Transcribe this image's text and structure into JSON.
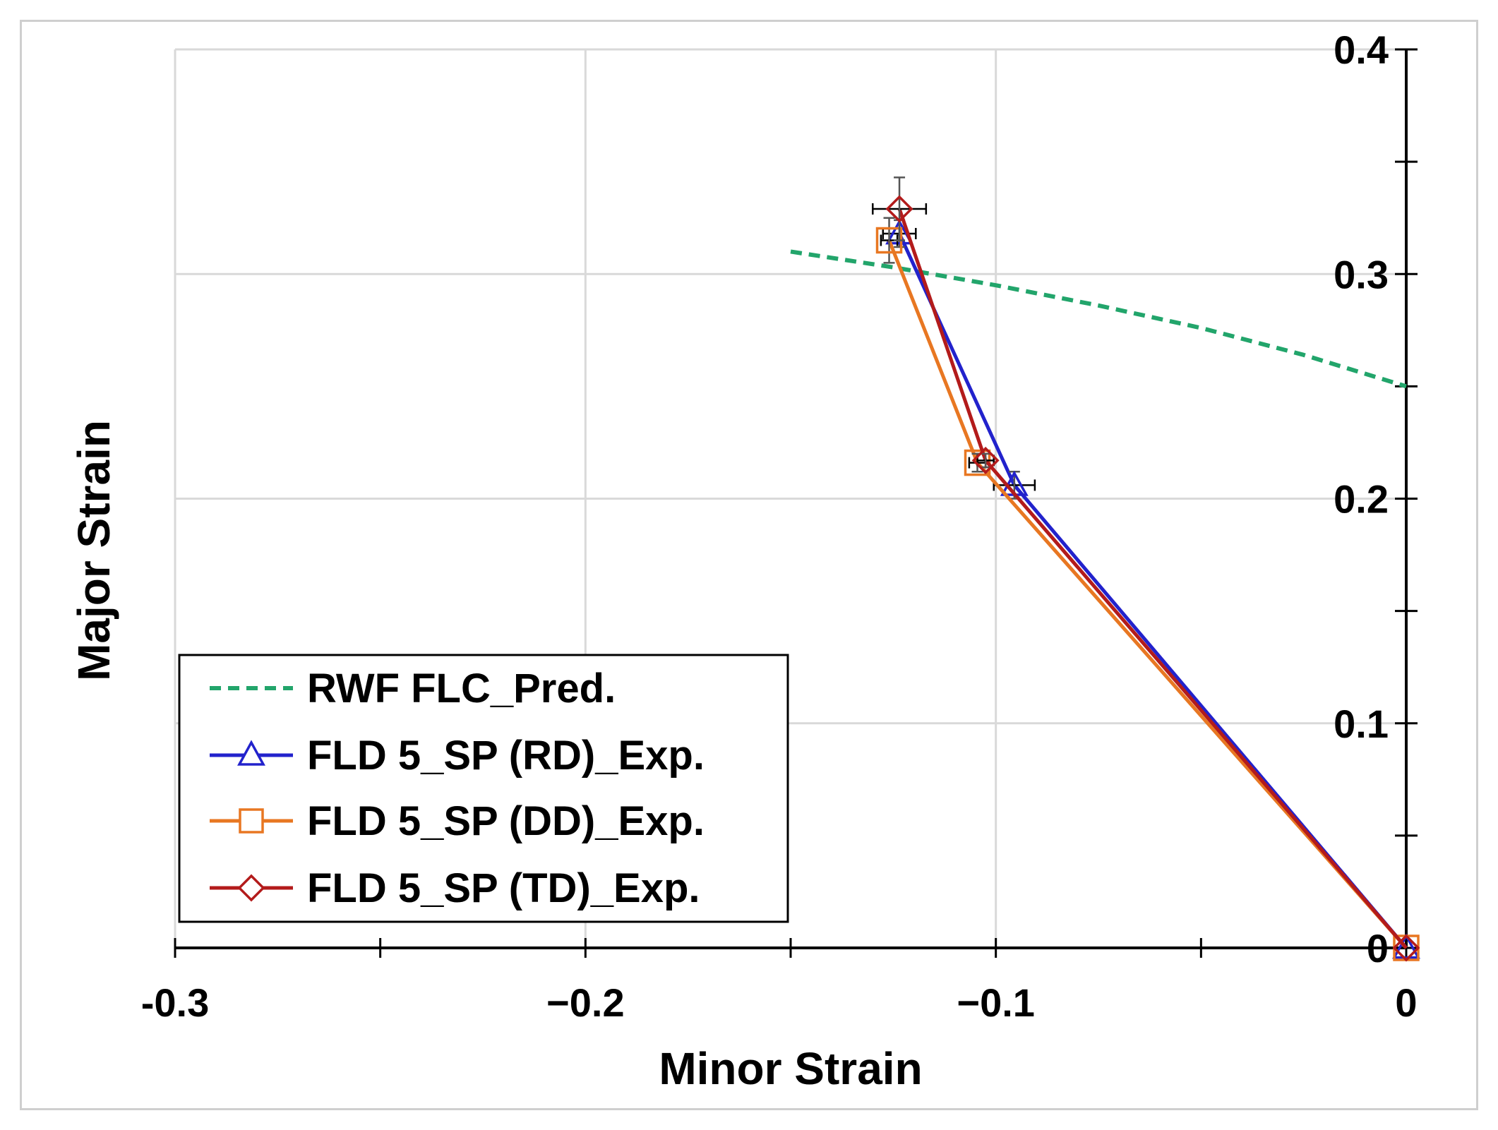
{
  "chart_data": {
    "type": "line",
    "title": "",
    "xlabel": "Minor Strain",
    "ylabel": "Major Strain",
    "xlim": [
      -0.3,
      0
    ],
    "ylim": [
      0,
      0.4
    ],
    "grid": true,
    "legend_position": "bottom-left",
    "x_ticks": [
      -0.3,
      -0.2,
      -0.1,
      0
    ],
    "x_tick_labels": [
      "-0.3",
      "−0.2",
      "−0.1",
      "0"
    ],
    "y_ticks": [
      0,
      0.1,
      0.2,
      0.3,
      0.4
    ],
    "y_tick_labels": [
      "0",
      "0.1",
      "0.2",
      "0.3",
      "0.4"
    ],
    "series": [
      {
        "name": "RWF FLC_Pred.",
        "color": "#22a56b",
        "style": "dashed",
        "marker": "none",
        "x": [
          -0.15,
          -0.125,
          -0.1,
          -0.075,
          -0.05,
          -0.025,
          0
        ],
        "y": [
          0.31,
          0.303,
          0.295,
          0.286,
          0.276,
          0.264,
          0.25
        ]
      },
      {
        "name": "FLD 5_SP (RD)_Exp.",
        "color": "#2222cc",
        "style": "solid",
        "marker": "triangle",
        "x": [
          -0.1235,
          -0.0955,
          0
        ],
        "y": [
          0.318,
          0.206,
          0
        ],
        "x_err": [
          0.004,
          0.005,
          0
        ],
        "y_err": [
          0.006,
          0.006,
          0
        ]
      },
      {
        "name": "FLD 5_SP (DD)_Exp.",
        "color": "#e87722",
        "style": "solid",
        "marker": "square",
        "x": [
          -0.126,
          -0.1045,
          0
        ],
        "y": [
          0.315,
          0.216,
          0
        ],
        "x_err": [
          0.002,
          0.002,
          0
        ],
        "y_err": [
          0.01,
          0.004,
          0
        ]
      },
      {
        "name": "FLD 5_SP (TD)_Exp.",
        "color": "#b31b1b",
        "style": "solid",
        "marker": "diamond",
        "x": [
          -0.1235,
          -0.1025,
          0
        ],
        "y": [
          0.329,
          0.217,
          0
        ],
        "x_err": [
          0.0065,
          0.002,
          0
        ],
        "y_err": [
          0.014,
          0.003,
          0
        ]
      }
    ]
  }
}
